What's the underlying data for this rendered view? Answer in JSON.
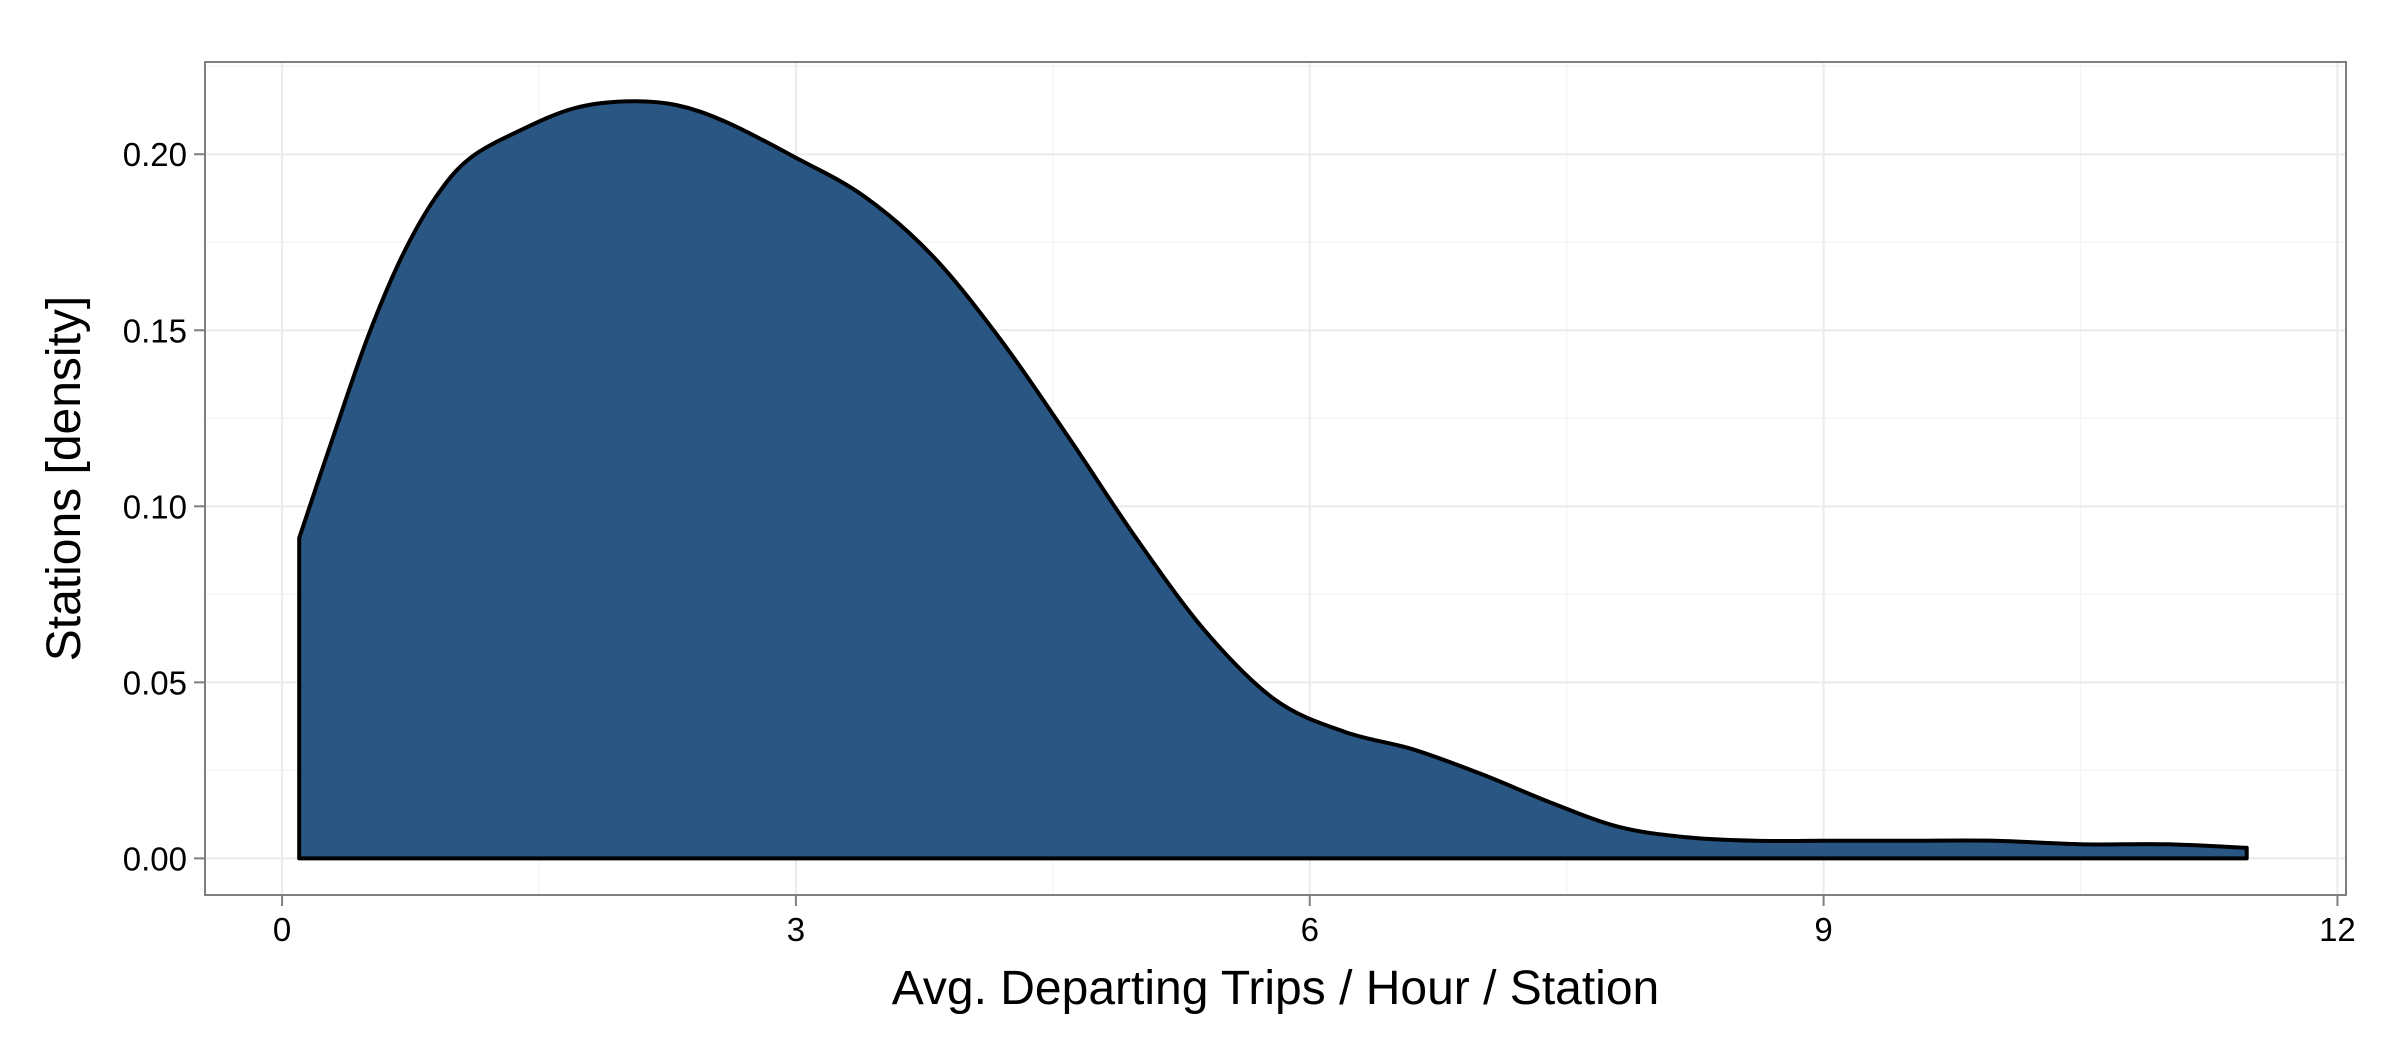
{
  "chart_data": {
    "type": "area",
    "title": "",
    "xlabel": "Avg. Departing Trips / Hour / Station",
    "ylabel": "Stations [density]",
    "xlim": [
      -0.45,
      12.05
    ],
    "ylim": [
      -0.0104,
      0.2262
    ],
    "x_ticks": [
      0,
      3,
      6,
      9,
      12
    ],
    "x_tick_labels": [
      "0",
      "3",
      "6",
      "9",
      "12"
    ],
    "y_ticks": [
      0.0,
      0.05,
      0.1,
      0.15,
      0.2
    ],
    "y_tick_labels": [
      "0.00",
      "0.05",
      "0.10",
      "0.15",
      "0.20"
    ],
    "grid": true,
    "legend": "none",
    "series": [
      {
        "x": [
          0.1,
          0.3,
          0.5,
          0.7,
          0.9,
          1.1,
          1.4,
          1.7,
          2.0,
          2.3,
          2.6,
          3.0,
          3.4,
          3.8,
          4.2,
          4.6,
          5.0,
          5.4,
          5.8,
          6.2,
          6.6,
          7.0,
          7.4,
          7.8,
          8.2,
          8.6,
          9.0,
          9.5,
          10.0,
          10.5,
          11.0,
          11.47
        ],
        "y": [
          0.091,
          0.12,
          0.148,
          0.171,
          0.188,
          0.199,
          0.207,
          0.213,
          0.215,
          0.214,
          0.209,
          0.199,
          0.188,
          0.171,
          0.147,
          0.119,
          0.09,
          0.064,
          0.045,
          0.036,
          0.031,
          0.024,
          0.016,
          0.009,
          0.006,
          0.005,
          0.005,
          0.005,
          0.005,
          0.004,
          0.004,
          0.003
        ],
        "fill": "#295683",
        "stroke": "#000000"
      }
    ],
    "colors": {
      "panel_border": "#7f7f7f",
      "grid_major": "#ebebeb",
      "grid_minor": "#f5f5f5"
    }
  }
}
